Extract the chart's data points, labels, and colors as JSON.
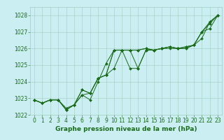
{
  "x": [
    0,
    1,
    2,
    3,
    4,
    5,
    6,
    7,
    8,
    9,
    10,
    11,
    12,
    13,
    14,
    15,
    16,
    17,
    18,
    19,
    20,
    21,
    22,
    23
  ],
  "series": [
    [
      1022.9,
      1022.7,
      1022.9,
      1022.9,
      1022.4,
      1022.6,
      1023.2,
      1022.9,
      1024.0,
      1025.1,
      1025.9,
      1025.9,
      1025.9,
      1025.9,
      1026.0,
      1025.9,
      1026.0,
      1026.1,
      1026.0,
      1026.1,
      1026.2,
      1027.0,
      1027.6,
      1028.0
    ],
    [
      1022.9,
      1022.7,
      1022.9,
      1022.9,
      1022.3,
      1022.6,
      1023.5,
      1023.3,
      1024.2,
      1024.4,
      1025.9,
      1025.9,
      1024.8,
      1024.8,
      1025.9,
      1025.9,
      1026.0,
      1026.0,
      1026.0,
      1026.1,
      1026.2,
      1026.6,
      1027.6,
      1028.0
    ],
    [
      1022.9,
      1022.7,
      1022.9,
      1022.9,
      1022.3,
      1022.6,
      1023.2,
      1023.3,
      1024.2,
      1024.4,
      1025.9,
      1025.9,
      1025.9,
      1025.9,
      1026.0,
      1025.9,
      1026.0,
      1026.1,
      1026.0,
      1026.0,
      1026.2,
      1027.0,
      1027.2,
      1028.0
    ],
    [
      1022.9,
      1022.7,
      1022.9,
      1022.9,
      1022.3,
      1022.6,
      1023.5,
      1023.3,
      1024.2,
      1024.4,
      1024.8,
      1025.9,
      1025.9,
      1024.8,
      1025.9,
      1025.9,
      1026.0,
      1026.1,
      1026.0,
      1026.0,
      1026.2,
      1027.0,
      1027.5,
      1028.0
    ]
  ],
  "line_color": "#1a6b1a",
  "marker": "D",
  "marker_size": 2,
  "bg_color": "#cbeef3",
  "grid_color": "#a0ccbb",
  "text_color": "#1a6b1a",
  "xlabel": "Graphe pression niveau de la mer (hPa)",
  "ylim": [
    1022,
    1028.5
  ],
  "yticks": [
    1022,
    1023,
    1024,
    1025,
    1026,
    1027,
    1028
  ],
  "xticks": [
    0,
    1,
    2,
    3,
    4,
    5,
    6,
    7,
    8,
    9,
    10,
    11,
    12,
    13,
    14,
    15,
    16,
    17,
    18,
    19,
    20,
    21,
    22,
    23
  ],
  "tick_fontsize": 5.5,
  "xlabel_fontsize": 6.5
}
